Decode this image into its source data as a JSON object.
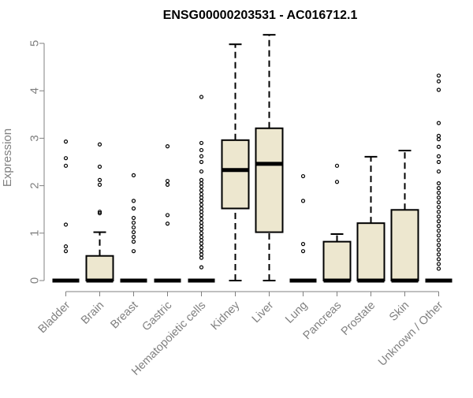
{
  "chart_data": {
    "type": "box",
    "title": "ENSG00000203531 - AC016712.1",
    "xlabel": "",
    "ylabel": "Expression",
    "ylim": [
      0,
      5.2
    ],
    "yticks": [
      0,
      1,
      2,
      3,
      4,
      5
    ],
    "legend": "none",
    "grid": false,
    "colors": {
      "box_fill": "#ede7cf",
      "box_stroke": "#000000",
      "axis": "#808080",
      "tick_label": "#808080",
      "title": "#000000"
    },
    "categories": [
      "Bladder",
      "Brain",
      "Breast",
      "Gastric",
      "Hematopoietic cells",
      "Kidney",
      "Liver",
      "Lung",
      "Pancreas",
      "Prostate",
      "Skin",
      "Unknown / Other"
    ],
    "boxes": [
      {
        "category": "Bladder",
        "min": 0,
        "q1": 0,
        "median": 0,
        "q3": 0,
        "max": 0,
        "outliers": [
          0.62,
          0.72,
          1.18,
          2.42,
          2.58,
          2.93
        ]
      },
      {
        "category": "Brain",
        "min": 0,
        "q1": 0,
        "median": 0,
        "q3": 0.52,
        "max": 1.02,
        "outliers": [
          1.42,
          1.45,
          2.02,
          2.12,
          2.4,
          2.87
        ]
      },
      {
        "category": "Breast",
        "min": 0,
        "q1": 0,
        "median": 0,
        "q3": 0,
        "max": 0,
        "outliers": [
          0.62,
          0.82,
          0.92,
          1.02,
          1.12,
          1.22,
          1.32,
          1.52,
          1.68,
          2.22
        ]
      },
      {
        "category": "Gastric",
        "min": 0,
        "q1": 0,
        "median": 0,
        "q3": 0,
        "max": 0,
        "outliers": [
          1.2,
          1.38,
          2.02,
          2.1,
          2.83
        ]
      },
      {
        "category": "Hematopoietic cells",
        "min": 0,
        "q1": 0,
        "median": 0,
        "q3": 0,
        "max": 0,
        "outliers": [
          0.28,
          0.48,
          0.55,
          0.62,
          0.7,
          0.78,
          0.85,
          0.92,
          1.0,
          1.08,
          1.15,
          1.22,
          1.3,
          1.38,
          1.45,
          1.52,
          1.6,
          1.68,
          1.75,
          1.82,
          1.9,
          1.98,
          2.05,
          2.12,
          2.3,
          2.5,
          2.62,
          2.75,
          2.9,
          3.87
        ]
      },
      {
        "category": "Kidney",
        "min": 0,
        "q1": 1.52,
        "median": 2.33,
        "q3": 2.96,
        "max": 4.98,
        "outliers": []
      },
      {
        "category": "Liver",
        "min": 0,
        "q1": 1.02,
        "median": 2.46,
        "q3": 3.21,
        "max": 5.18,
        "outliers": []
      },
      {
        "category": "Lung",
        "min": 0,
        "q1": 0,
        "median": 0,
        "q3": 0,
        "max": 0,
        "outliers": [
          0.62,
          0.77,
          1.68,
          2.2
        ]
      },
      {
        "category": "Pancreas",
        "min": 0,
        "q1": 0,
        "median": 0,
        "q3": 0.82,
        "max": 0.98,
        "outliers": [
          2.08,
          2.42
        ]
      },
      {
        "category": "Prostate",
        "min": 0,
        "q1": 0,
        "median": 0,
        "q3": 1.21,
        "max": 2.61,
        "outliers": []
      },
      {
        "category": "Skin",
        "min": 0,
        "q1": 0,
        "median": 0,
        "q3": 1.49,
        "max": 2.74,
        "outliers": []
      },
      {
        "category": "Unknown / Other",
        "min": 0,
        "q1": 0,
        "median": 0,
        "q3": 0,
        "max": 0,
        "outliers": [
          0.25,
          0.35,
          0.45,
          0.55,
          0.65,
          0.75,
          0.85,
          0.95,
          1.05,
          1.15,
          1.25,
          1.35,
          1.45,
          1.55,
          1.65,
          1.75,
          1.85,
          1.95,
          2.05,
          2.3,
          2.5,
          2.62,
          2.82,
          2.98,
          3.05,
          3.32,
          4.02,
          4.2,
          4.32
        ]
      }
    ]
  }
}
